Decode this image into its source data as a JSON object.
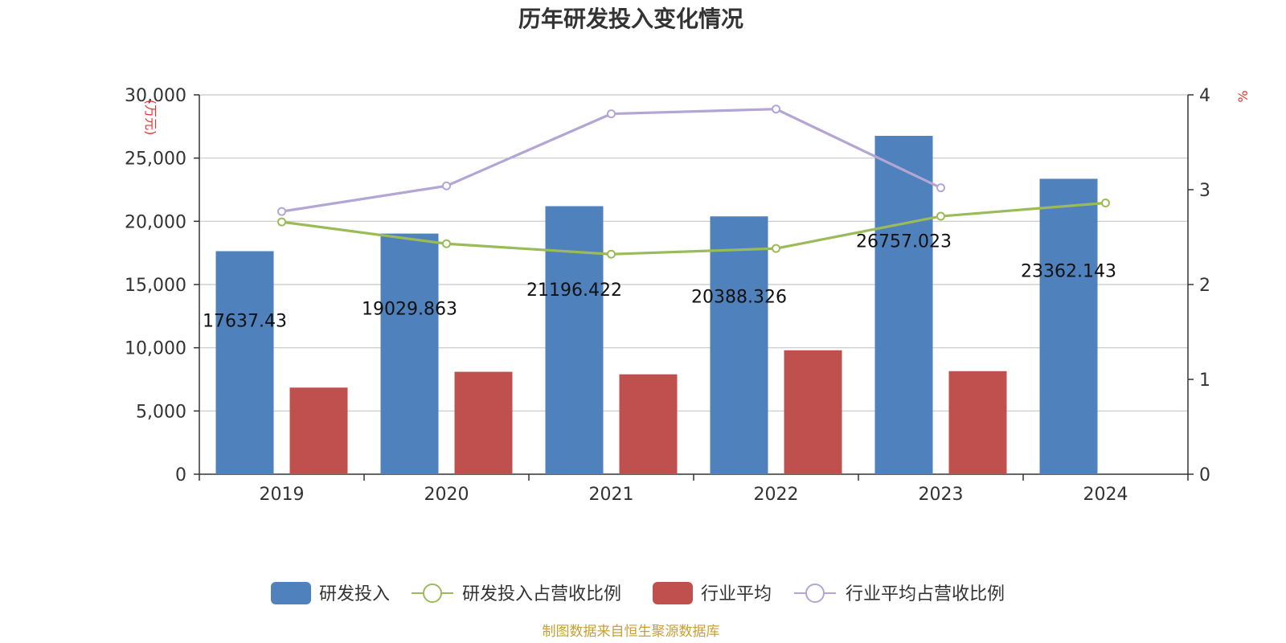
{
  "chart_data": {
    "type": "bar",
    "title": "历年研发投入变化情况",
    "categories": [
      "2019",
      "2020",
      "2021",
      "2022",
      "2023",
      "2024"
    ],
    "y_left": {
      "unit": "(万元)",
      "ylim": [
        0,
        30000
      ],
      "ticks": [
        0,
        5000,
        10000,
        15000,
        20000,
        25000,
        30000
      ],
      "tick_labels": [
        "0",
        "5,000",
        "10,000",
        "15,000",
        "20,000",
        "25,000",
        "30,000"
      ]
    },
    "y_right": {
      "unit": "%",
      "ylim": [
        0,
        4
      ],
      "ticks": [
        0,
        1,
        2,
        3,
        4
      ],
      "tick_labels": [
        "0",
        "1",
        "2",
        "3",
        "4"
      ]
    },
    "grid": true,
    "legend_position": "bottom",
    "series": [
      {
        "name": "研发投入",
        "type": "bar",
        "axis": "left",
        "color": "#4f81bd",
        "values": [
          17637.43,
          19029.863,
          21196.422,
          20388.326,
          26757.023,
          23362.143
        ],
        "labels": [
          "17637.43",
          "19029.863",
          "21196.422",
          "20388.326",
          "26757.023",
          "23362.143"
        ]
      },
      {
        "name": "研发投入占营收比例",
        "type": "line",
        "axis": "right",
        "color": "#9bbb59",
        "values": [
          2.66,
          2.43,
          2.32,
          2.38,
          2.72,
          2.86
        ]
      },
      {
        "name": "行业平均",
        "type": "bar",
        "axis": "left",
        "color": "#c0504d",
        "values": [
          6850,
          8100,
          7900,
          9800,
          8150,
          null
        ]
      },
      {
        "name": "行业平均占营收比例",
        "type": "line",
        "axis": "right",
        "color": "#b3a6d4",
        "values": [
          2.77,
          3.04,
          3.8,
          3.85,
          3.02,
          null
        ]
      }
    ]
  },
  "source_note": "制图数据来自恒生聚源数据库"
}
